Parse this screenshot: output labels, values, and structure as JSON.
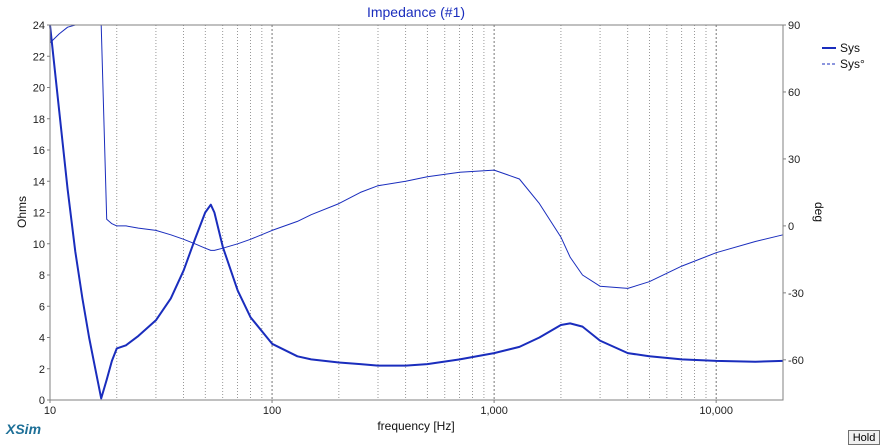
{
  "brand": "XSim",
  "hold_label": "Hold",
  "chart_data": {
    "type": "line",
    "title": "Impedance (#1)",
    "xlabel": "frequency [Hz]",
    "ylabel": "Ohms",
    "y2label": "deg",
    "xscale": "log",
    "xlim": [
      10,
      20000
    ],
    "ylim": [
      0,
      24
    ],
    "y2lim": [
      -78,
      90
    ],
    "grid": true,
    "legend_position": "top-right",
    "x_ticks": [
      {
        "value": 10,
        "label": "10"
      },
      {
        "value": 100,
        "label": "100"
      },
      {
        "value": 1000,
        "label": "1,000"
      },
      {
        "value": 10000,
        "label": "10,000"
      }
    ],
    "y_ticks": [
      0,
      2,
      4,
      6,
      8,
      10,
      12,
      14,
      16,
      18,
      20,
      22,
      24
    ],
    "y2_ticks": [
      90,
      60,
      30,
      0,
      -30,
      -60
    ],
    "colors": {
      "series": "#1a2dbd",
      "grid": "#555555",
      "frame": "#808080"
    },
    "series": [
      {
        "name": "Sys",
        "axis": "left",
        "style": "solid",
        "x": [
          10,
          11,
          12,
          13,
          14,
          15,
          16,
          17,
          18,
          19,
          20,
          22,
          25,
          30,
          35,
          40,
          45,
          50,
          53,
          55,
          60,
          70,
          80,
          100,
          130,
          150,
          200,
          250,
          300,
          400,
          500,
          700,
          1000,
          1300,
          1600,
          2000,
          2200,
          2500,
          3000,
          4000,
          5000,
          7000,
          10000,
          15000,
          20000
        ],
        "y": [
          24,
          18.5,
          13.5,
          9.5,
          6.5,
          4,
          2,
          0.1,
          1.3,
          2.5,
          3.3,
          3.5,
          4.1,
          5.1,
          6.5,
          8.3,
          10.3,
          12,
          12.5,
          12,
          9.8,
          7,
          5.3,
          3.6,
          2.8,
          2.6,
          2.4,
          2.3,
          2.2,
          2.2,
          2.3,
          2.6,
          3,
          3.4,
          4,
          4.8,
          4.9,
          4.7,
          3.8,
          3,
          2.8,
          2.6,
          2.5,
          2.45,
          2.5
        ]
      },
      {
        "name": "Sys°",
        "axis": "right",
        "style": "dashed",
        "x": [
          10,
          11,
          12,
          13,
          14,
          15,
          16,
          17,
          18,
          19,
          20,
          22,
          25,
          30,
          35,
          40,
          45,
          50,
          53,
          55,
          60,
          70,
          80,
          100,
          130,
          150,
          200,
          250,
          300,
          400,
          500,
          700,
          1000,
          1300,
          1600,
          2000,
          2200,
          2500,
          3000,
          4000,
          5000,
          7000,
          10000,
          15000,
          20000
        ],
        "y": [
          82,
          86,
          89,
          90,
          90,
          90,
          90,
          90,
          3,
          1,
          0,
          0,
          -1,
          -2,
          -4,
          -6,
          -8,
          -10,
          -11,
          -11,
          -10,
          -8,
          -6,
          -2,
          2,
          5,
          10,
          15,
          18,
          20,
          22,
          24,
          25,
          21,
          10,
          -5,
          -14,
          -22,
          -27,
          -28,
          -25,
          -18,
          -12,
          -7,
          -4
        ]
      }
    ]
  }
}
